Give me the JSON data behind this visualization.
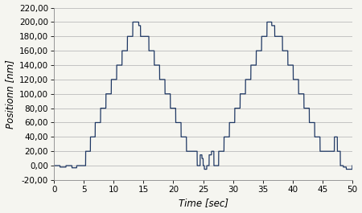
{
  "title": "",
  "xlabel": "Time [sec]",
  "ylabel": "Positionn [nm]",
  "xlim": [
    0,
    50
  ],
  "ylim": [
    -20,
    220
  ],
  "xticks": [
    0,
    5,
    10,
    15,
    20,
    25,
    30,
    35,
    40,
    45,
    50
  ],
  "yticks": [
    -20,
    0,
    20,
    40,
    60,
    80,
    100,
    120,
    140,
    160,
    180,
    200,
    220
  ],
  "line_color": "#1f3864",
  "line_width": 0.9,
  "bg_color": "#f5f5f0",
  "grid_color": "#bbbbbb",
  "label_fontsize": 8.5,
  "tick_fontsize": 7.5
}
